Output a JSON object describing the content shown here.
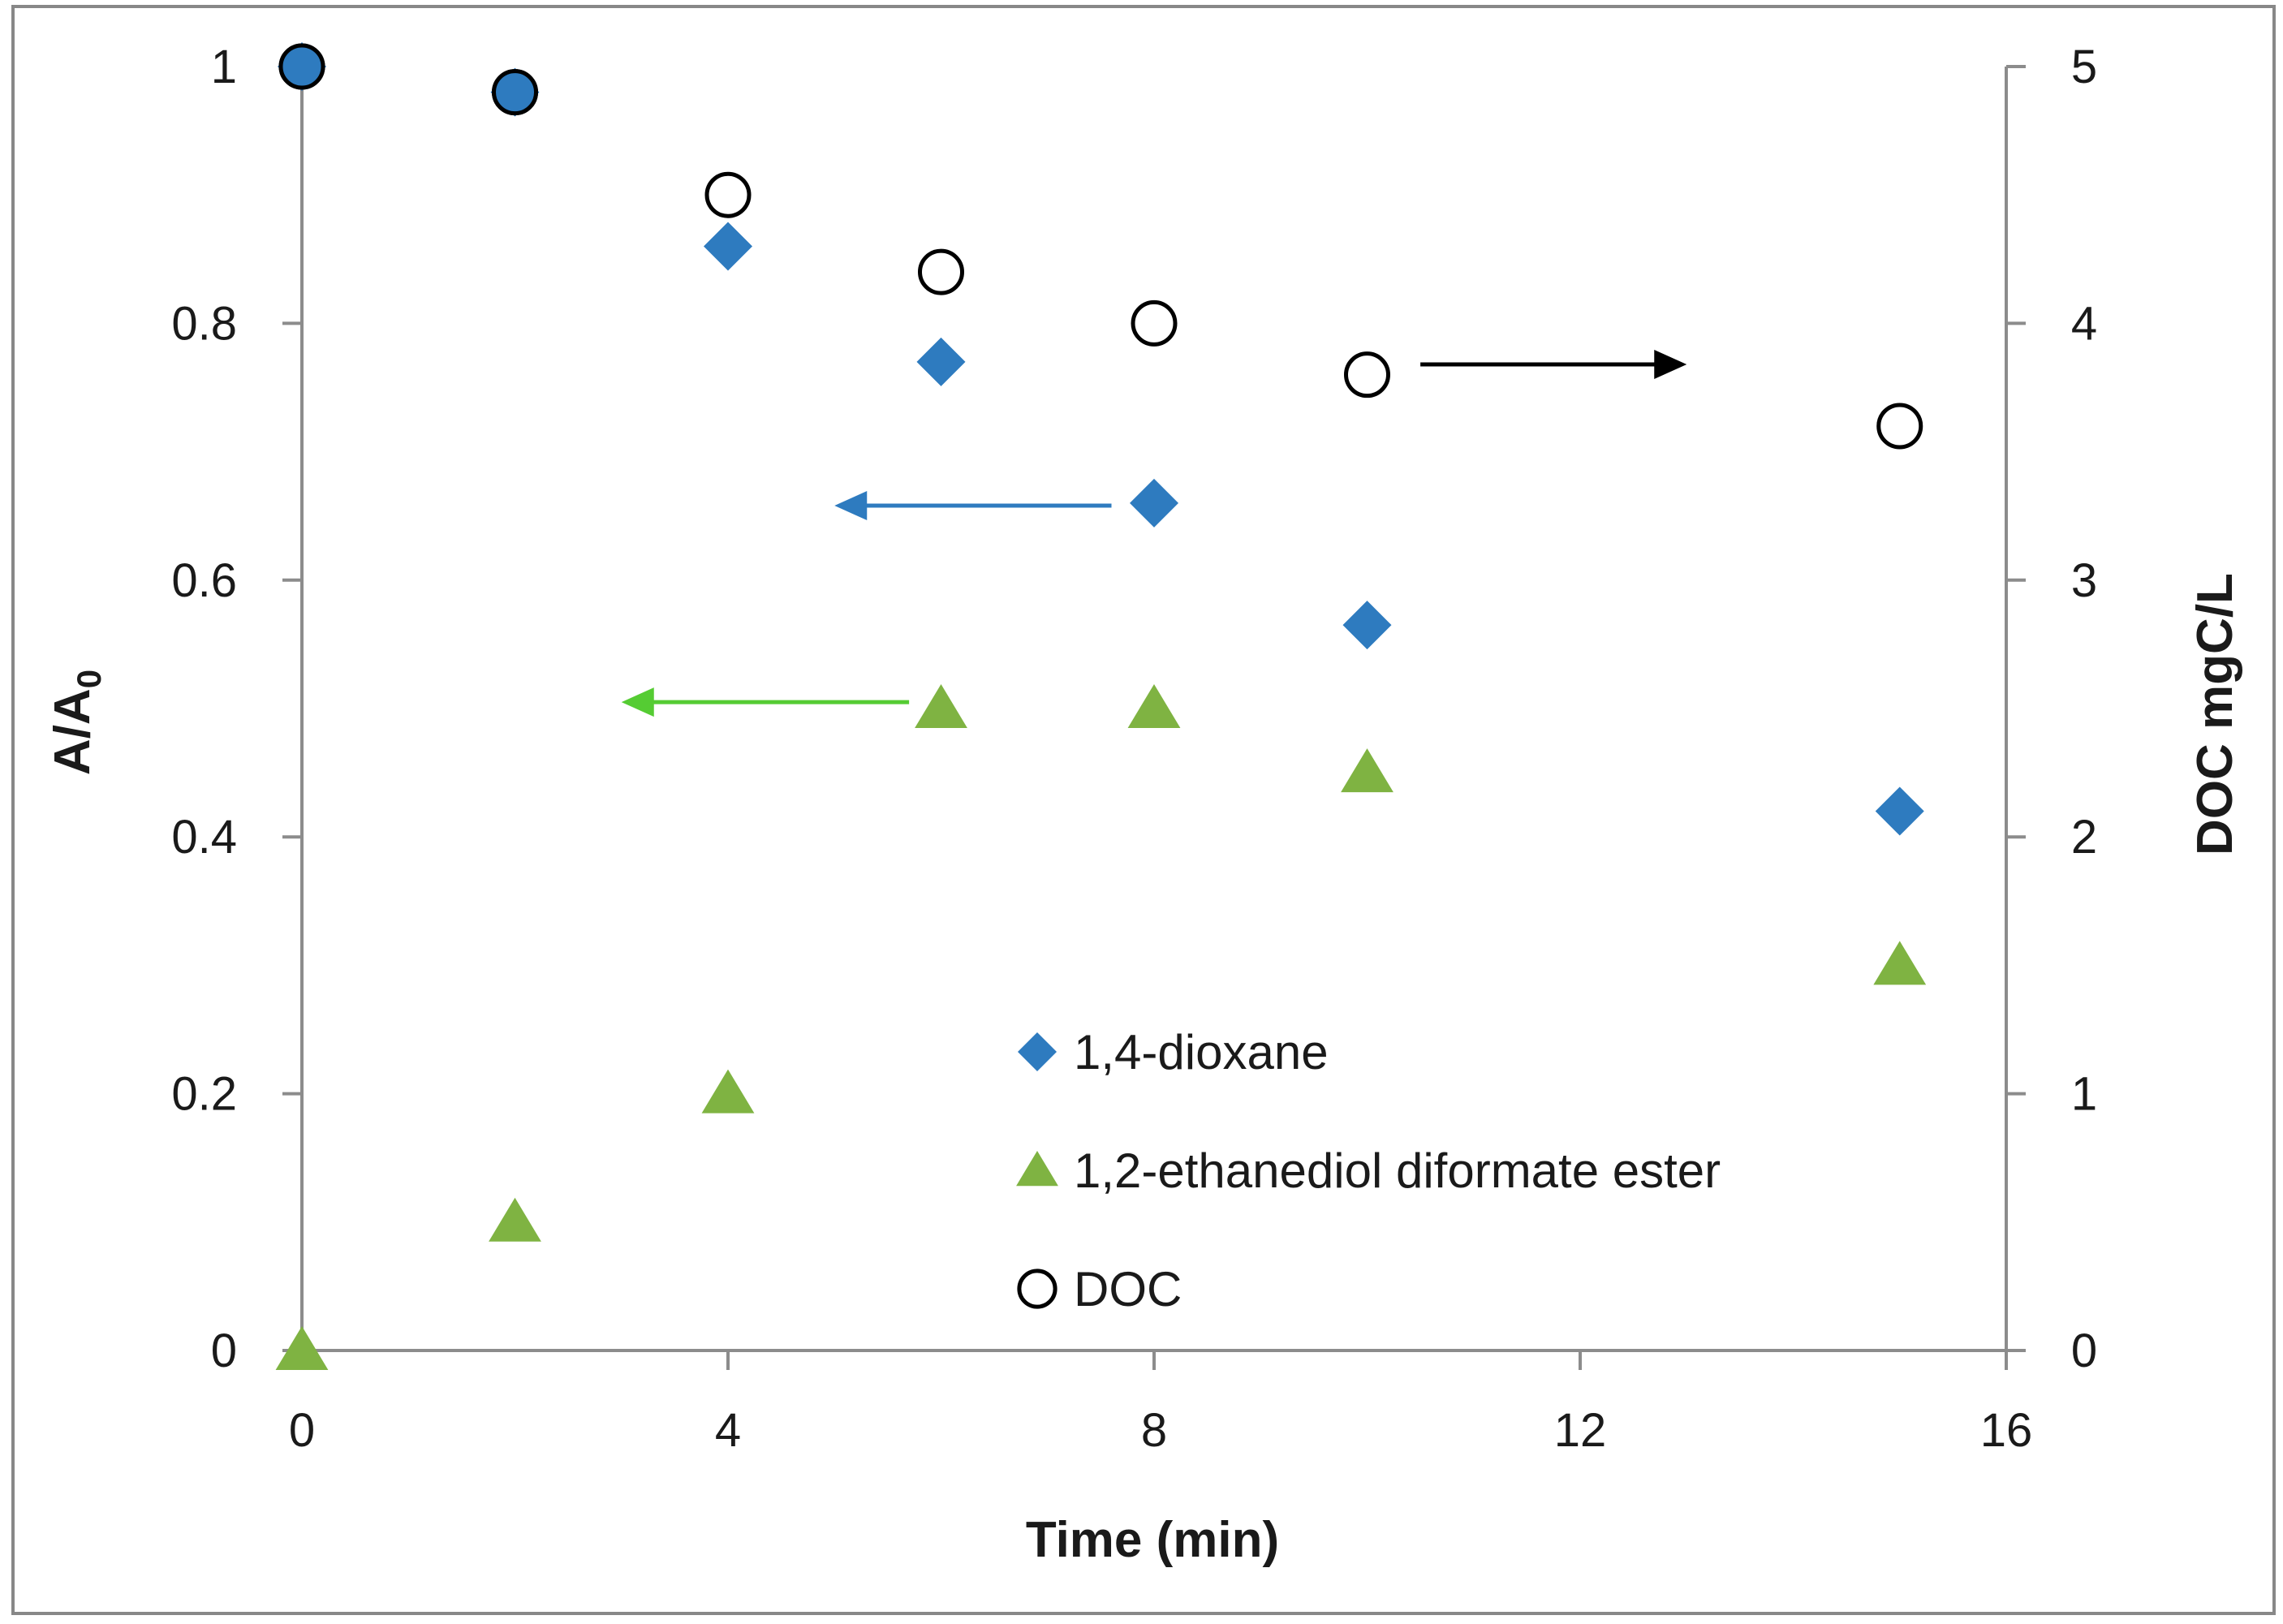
{
  "chart_data": {
    "type": "scatter",
    "title": "",
    "xlabel": "Time (min)",
    "ylabel": "A/A",
    "ylabel_subscript": "0",
    "y2label": "DOC mgC/L",
    "xlim": [
      0,
      16
    ],
    "ylim": [
      0,
      1
    ],
    "y2lim": [
      0,
      5
    ],
    "x_ticks": [
      0,
      4,
      8,
      12,
      16
    ],
    "y_ticks": [
      0,
      0.2,
      0.4,
      0.6,
      0.8,
      1
    ],
    "y2_ticks": [
      0,
      1,
      2,
      3,
      4,
      5
    ],
    "grid": false,
    "legend_position": "bottom-center",
    "series": [
      {
        "name": "1,4-dioxane",
        "axis": "left",
        "marker": "diamond",
        "color": "#2E7BBF",
        "x": [
          0,
          2,
          4,
          6,
          8,
          10,
          15
        ],
        "y": [
          1.0,
          0.98,
          0.86,
          0.77,
          0.66,
          0.565,
          0.42
        ]
      },
      {
        "name": "1,2-ethanediol diformate ester",
        "axis": "left",
        "marker": "triangle",
        "color": "#7FB342",
        "x": [
          0,
          2,
          4,
          6,
          8,
          10,
          15
        ],
        "y": [
          0.0,
          0.1,
          0.2,
          0.5,
          0.5,
          0.45,
          0.3
        ]
      },
      {
        "name": "DOC",
        "axis": "right",
        "marker": "open-circle",
        "color": "#000000",
        "x": [
          0,
          2,
          4,
          6,
          8,
          10,
          15
        ],
        "y": [
          5.0,
          4.9,
          4.5,
          4.2,
          4.0,
          3.8,
          3.6
        ]
      }
    ],
    "annotations": [
      {
        "type": "arrow",
        "series": "DOC",
        "direction": "right",
        "color": "#000000",
        "x_from": 10.5,
        "x_to": 13.0,
        "y": 3.84,
        "axis": "right"
      },
      {
        "type": "arrow",
        "series": "1,4-dioxane",
        "direction": "left",
        "color": "#2E7BBF",
        "x_from": 7.6,
        "x_to": 5.0,
        "y": 0.658,
        "axis": "left"
      },
      {
        "type": "arrow",
        "series": "1,2-ethanediol diformate ester",
        "direction": "left",
        "color": "#55CC33",
        "x_from": 5.7,
        "x_to": 3.0,
        "y": 0.505,
        "axis": "left"
      }
    ]
  }
}
